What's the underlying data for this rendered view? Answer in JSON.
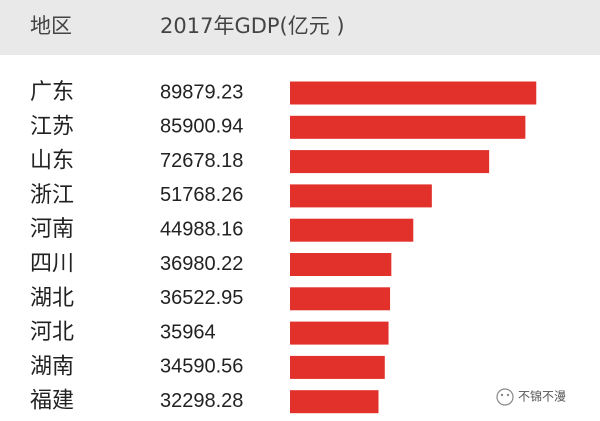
{
  "chart_data": {
    "type": "bar",
    "orientation": "horizontal",
    "headers": [
      "地区",
      "2017年GDP(亿元 )"
    ],
    "categories": [
      "广东",
      "江苏",
      "山东",
      "浙江",
      "河南",
      "四川",
      "湖北",
      "河北",
      "湖南",
      "福建"
    ],
    "values": [
      89879.23,
      85900.94,
      72678.18,
      51768.26,
      44988.16,
      36980.22,
      36522.95,
      35964,
      34590.56,
      32298.28
    ],
    "color": "#e2302a",
    "xlim": [
      0,
      100000
    ],
    "watermark": "不锦不漫"
  }
}
